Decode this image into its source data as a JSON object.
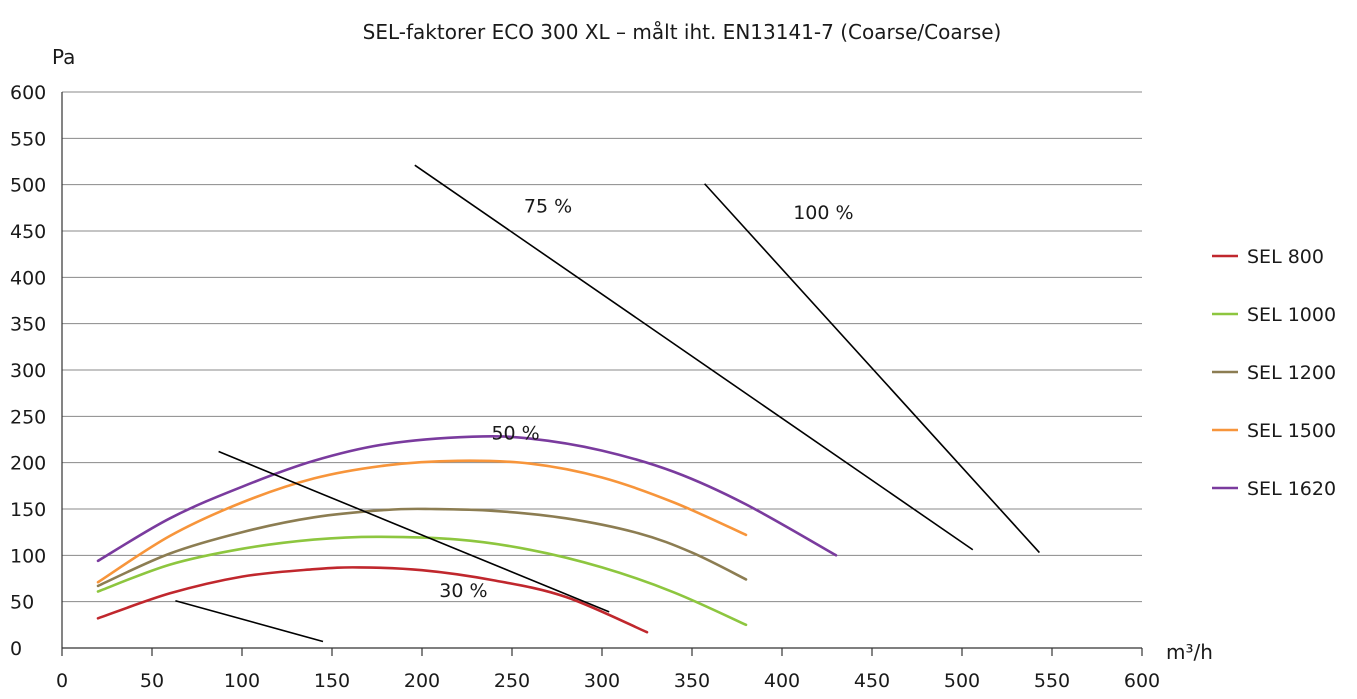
{
  "chart_data": {
    "type": "line",
    "title": "SEL-faktorer ECO 300 XL – målt iht. EN13141-7 (Coarse/Coarse)",
    "ylabel": "Pa",
    "xlabel": "m³/h",
    "xlim": [
      0,
      600
    ],
    "ylim": [
      0,
      600
    ],
    "x_ticks": [
      "0",
      "50",
      "100",
      "150",
      "200",
      "250",
      "300",
      "350",
      "400",
      "450",
      "500",
      "550",
      "600"
    ],
    "y_ticks": [
      "0",
      "50",
      "100",
      "150",
      "200",
      "250",
      "300",
      "350",
      "400",
      "450",
      "500",
      "550",
      "600"
    ],
    "grid": "horizontal",
    "legend_position": "right",
    "series": [
      {
        "name": "SEL 800",
        "color": "#c0272d",
        "x": [
          20,
          60,
          100,
          140,
          165,
          200,
          240,
          280,
          325
        ],
        "y": [
          32,
          59,
          77,
          85,
          87,
          84,
          73,
          55,
          17
        ]
      },
      {
        "name": "SEL 1000",
        "color": "#8dc63f",
        "x": [
          20,
          60,
          100,
          140,
          175,
          220,
          260,
          300,
          340,
          380
        ],
        "y": [
          61,
          90,
          107,
          117,
          120,
          117,
          106,
          87,
          60,
          25
        ]
      },
      {
        "name": "SEL 1200",
        "color": "#8c7d52",
        "x": [
          20,
          60,
          100,
          140,
          180,
          205,
          240,
          280,
          320,
          350,
          380
        ],
        "y": [
          67,
          102,
          125,
          141,
          149,
          150,
          148,
          140,
          124,
          103,
          74
        ]
      },
      {
        "name": "SEL 1500",
        "color": "#f7953b",
        "x": [
          20,
          60,
          100,
          140,
          180,
          220,
          260,
          300,
          340,
          380
        ],
        "y": [
          71,
          121,
          157,
          183,
          197,
          202,
          199,
          184,
          157,
          122
        ]
      },
      {
        "name": "SEL 1620",
        "color": "#7a3b9e",
        "x": [
          20,
          60,
          100,
          140,
          180,
          228,
          260,
          300,
          340,
          380,
          430
        ],
        "y": [
          94,
          140,
          174,
          202,
          220,
          228,
          226,
          213,
          190,
          155,
          100
        ]
      }
    ],
    "efficiency_lines": [
      {
        "label": "30 %",
        "x": [
          63,
          145
        ],
        "y": [
          51,
          7
        ],
        "label_at": [
          223,
          55
        ]
      },
      {
        "label": "50 %",
        "x": [
          87,
          304
        ],
        "y": [
          212,
          39
        ],
        "label_at": [
          252,
          225
        ]
      },
      {
        "label": "75 %",
        "x": [
          196,
          506
        ],
        "y": [
          521,
          106
        ],
        "label_at": [
          270,
          470
        ]
      },
      {
        "label": "100 %",
        "x": [
          357,
          543
        ],
        "y": [
          501,
          103
        ],
        "label_at": [
          423,
          463
        ]
      }
    ]
  }
}
